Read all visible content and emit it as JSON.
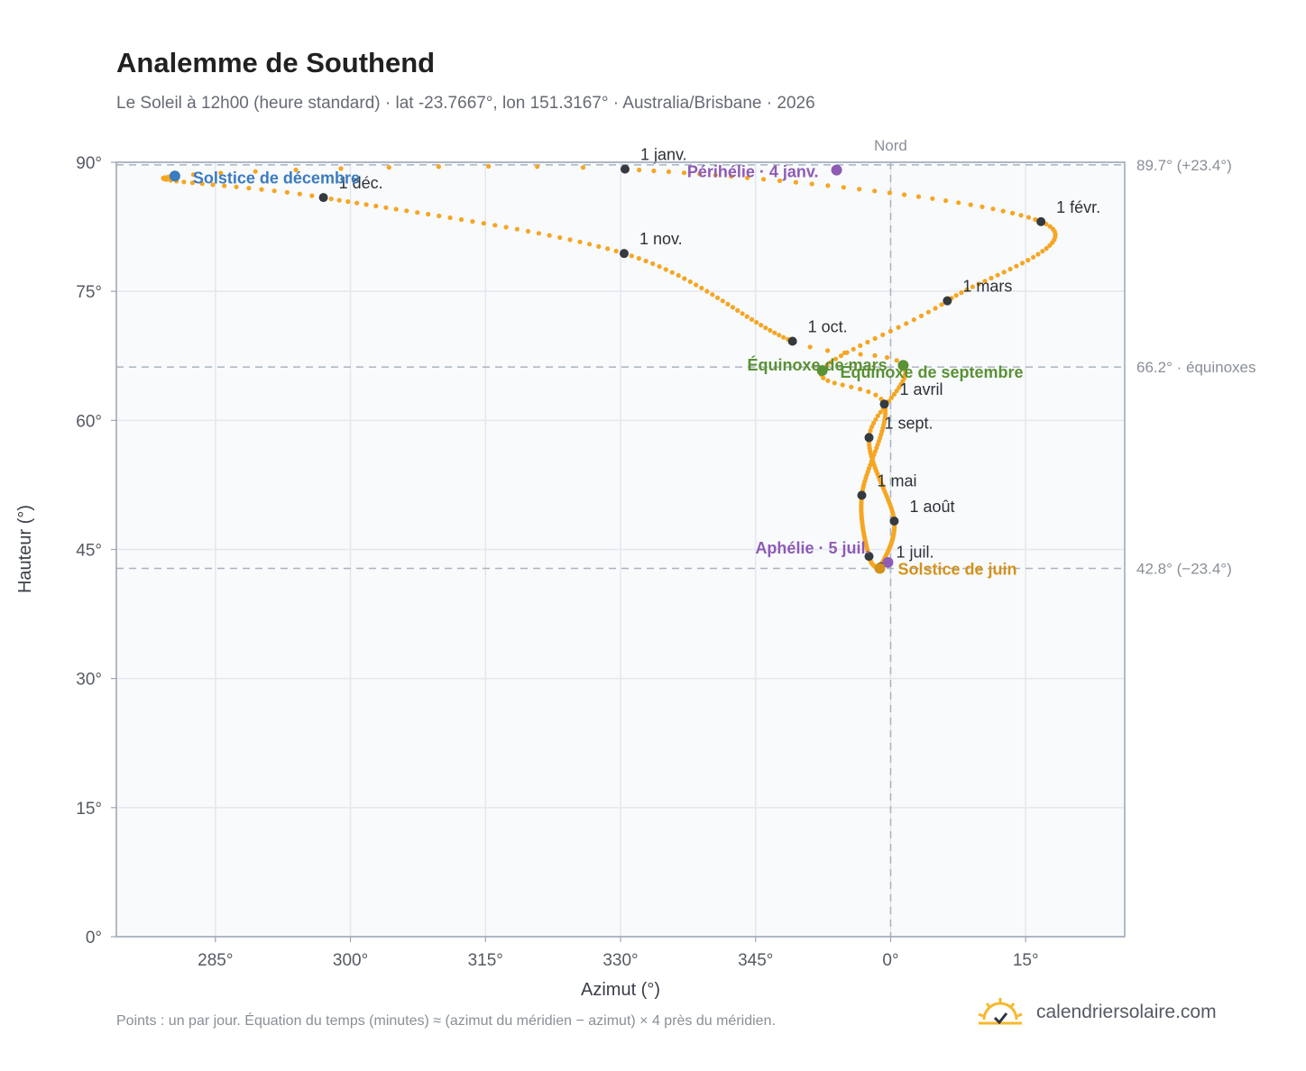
{
  "header": {
    "title": "Analemme de Southend",
    "subtitle": "Le Soleil à 12h00 (heure standard) · lat -23.7667°, lon 151.3167° · Australia/Brisbane · 2026"
  },
  "footer": {
    "note": "Points : un par jour. Équation du temps (minutes) ≈ (azimut du méridien − azimut) × 4 près du méridien.",
    "brand": "calendriersolaire.com",
    "brand_icon": "sun-check-icon",
    "brand_color": "#f5b82e"
  },
  "chart_data": {
    "type": "scatter",
    "title": "Analemme de Southend",
    "xlabel": "Azimut (°)",
    "ylabel": "Hauteur (°)",
    "x_axis": {
      "min": 274,
      "max": 26,
      "wraps_at": 360,
      "ticks": [
        "285°",
        "300°",
        "315°",
        "330°",
        "345°",
        "0°",
        "15°"
      ]
    },
    "y_axis": {
      "min": 0,
      "max": 90,
      "ticks": [
        "0°",
        "15°",
        "30°",
        "45°",
        "60°",
        "75°",
        "90°"
      ]
    },
    "grid": true,
    "reference_lines": [
      {
        "axis": "x",
        "value": 0,
        "label": "Nord"
      },
      {
        "axis": "y",
        "value": 89.7,
        "label": "89.7° (+23.4°)"
      },
      {
        "axis": "y",
        "value": 66.2,
        "label": "66.2° · équinoxes"
      },
      {
        "axis": "y",
        "value": 42.8,
        "label": "42.8° (−23.4°)"
      }
    ],
    "series": [],
    "months": [
      {
        "label": "1 janv.",
        "az": 330.5,
        "alt": 89.2
      },
      {
        "label": "1 févr.",
        "az": 16.7,
        "alt": 83.1
      },
      {
        "label": "1 mars",
        "az": 6.3,
        "alt": 73.9
      },
      {
        "label": "1 avril",
        "az": -0.7,
        "alt": 61.9
      },
      {
        "label": "1 mai",
        "az": -3.2,
        "alt": 51.3
      },
      {
        "label": "",
        "az": -2.4,
        "alt": 44.2
      },
      {
        "label": "1 juil.",
        "az": -1.1,
        "alt": 43.0
      },
      {
        "label": "1 août",
        "az": 0.4,
        "alt": 48.3
      },
      {
        "label": "1 sept.",
        "az": -2.4,
        "alt": 58.0
      },
      {
        "label": "1 oct.",
        "az": 349.1,
        "alt": 69.2
      },
      {
        "label": "1 nov.",
        "az": 330.4,
        "alt": 79.4
      },
      {
        "label": "1 déc.",
        "az": 297.0,
        "alt": 85.9
      }
    ],
    "events": [
      {
        "label": "Solstice de décembre",
        "az": 280.5,
        "alt": 88.4,
        "color": "#3b7bbf"
      },
      {
        "label": "Périhélie · 4 janv.",
        "az": 354.0,
        "alt": 89.1,
        "color": "#8e5bb5"
      },
      {
        "label": "Équinoxe de mars",
        "az": 352.4,
        "alt": 65.8,
        "color": "#5a9134"
      },
      {
        "label": "Équinoxe de septembre",
        "az": 1.4,
        "alt": 66.4,
        "color": "#5a9134"
      },
      {
        "label": "Aphélie · 5 juil.",
        "az": -0.3,
        "alt": 43.5,
        "color": "#8e5bb5"
      },
      {
        "label": "Solstice de juin",
        "az": -1.2,
        "alt": 42.8,
        "color": "#d4921a"
      }
    ],
    "colors": {
      "path": "#f5a623",
      "month_marker": "#343a40",
      "plot_background": "#f8fafc",
      "grid": "#e4e8ee",
      "axis_border": "#9aa5b4",
      "reference_line": "#aab4bf"
    }
  }
}
